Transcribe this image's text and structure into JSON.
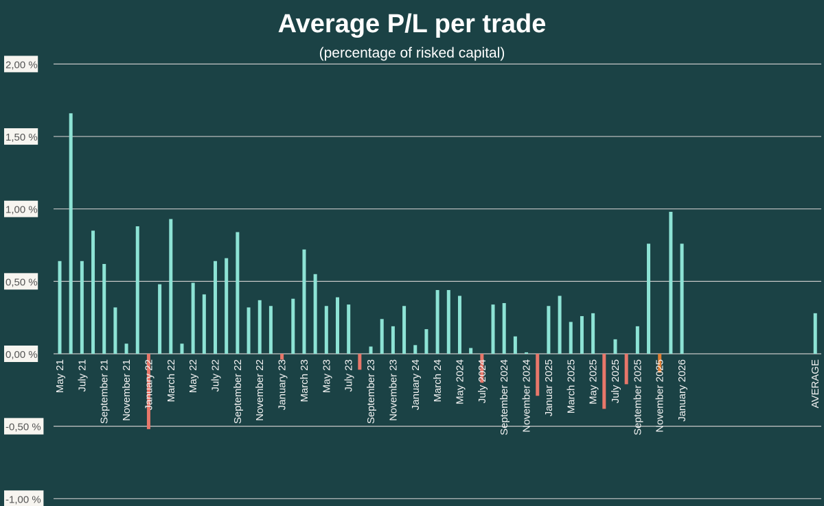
{
  "chart_data": {
    "type": "bar",
    "title": "Average P/L per trade",
    "subtitle": "(percentage of risked capital)",
    "ylim": [
      -1.0,
      2.0
    ],
    "yticks": [
      2.0,
      1.5,
      1.0,
      0.5,
      0.0,
      -0.5,
      -1.0
    ],
    "ytick_labels": [
      "2,00 %",
      "1,50 %",
      "1,00 %",
      "0,50 %",
      "0,00 %",
      "-0,50 %",
      "-1,00 %"
    ],
    "grid": true,
    "legend": "none",
    "categories": [
      "May 21",
      "June 21",
      "July 21",
      "August 21",
      "September 21",
      "October 21",
      "November 21",
      "December 21",
      "January 22",
      "February 22",
      "March 22",
      "April 22",
      "May 22",
      "June 22",
      "July 22",
      "August 22",
      "September 22",
      "October 22",
      "November 22",
      "December 22",
      "January 23",
      "February 23",
      "March 23",
      "April 23",
      "May 23",
      "June 23",
      "July 23",
      "August 23",
      "September 23",
      "October 23",
      "November 23",
      "December 23",
      "January 24",
      "February 24",
      "March 24",
      "April 24",
      "May 2024",
      "June 2024",
      "July 2024",
      "August 2024",
      "September 2024",
      "October 2024",
      "November 2024",
      "December 2024",
      "Januar 2025",
      "February 2025",
      "March 2025",
      "April 2025",
      "May 2025",
      "June 2025",
      "July 2025",
      "August 2025",
      "September 2025",
      "October 2025",
      "November 2025",
      "December 2025",
      "January 2026"
    ],
    "shown_labels": [
      "May 21",
      "July 21",
      "September 21",
      "November 21",
      "January 22",
      "March 22",
      "May 22",
      "July 22",
      "September 22",
      "November 22",
      "January 23",
      "March 23",
      "May 23",
      "July 23",
      "September 23",
      "November 23",
      "January 24",
      "March 24",
      "May 2024",
      "July 2024",
      "September 2024",
      "November 2024",
      "Januar 2025",
      "March 2025",
      "May 2025",
      "July 2025",
      "September 2025",
      "November 2025",
      "January 2026"
    ],
    "values": [
      0.64,
      1.66,
      0.64,
      0.85,
      0.62,
      0.32,
      0.07,
      0.88,
      -0.52,
      0.48,
      0.93,
      0.07,
      0.49,
      0.41,
      0.64,
      0.66,
      0.84,
      0.32,
      0.37,
      0.33,
      -0.04,
      0.38,
      0.72,
      0.55,
      0.33,
      0.39,
      0.34,
      -0.11,
      0.05,
      0.24,
      0.19,
      0.33,
      0.06,
      0.17,
      0.44,
      0.44,
      0.4,
      0.04,
      -0.2,
      0.34,
      0.35,
      0.12,
      0.01,
      -0.29,
      0.33,
      0.4,
      0.22,
      0.26,
      0.28,
      -0.38,
      0.1,
      -0.21,
      0.19,
      0.76,
      -0.13,
      0.98,
      0.76
    ],
    "average": {
      "label": "AVERAGE",
      "value": 0.28
    },
    "highlight_index": 54,
    "colors": {
      "background": "#1b4245",
      "positive": "#8de3d5",
      "negative": "#e8776a",
      "highlight": "#e07f35",
      "grid": "#c8c8c8",
      "text": "#ffffff"
    }
  }
}
